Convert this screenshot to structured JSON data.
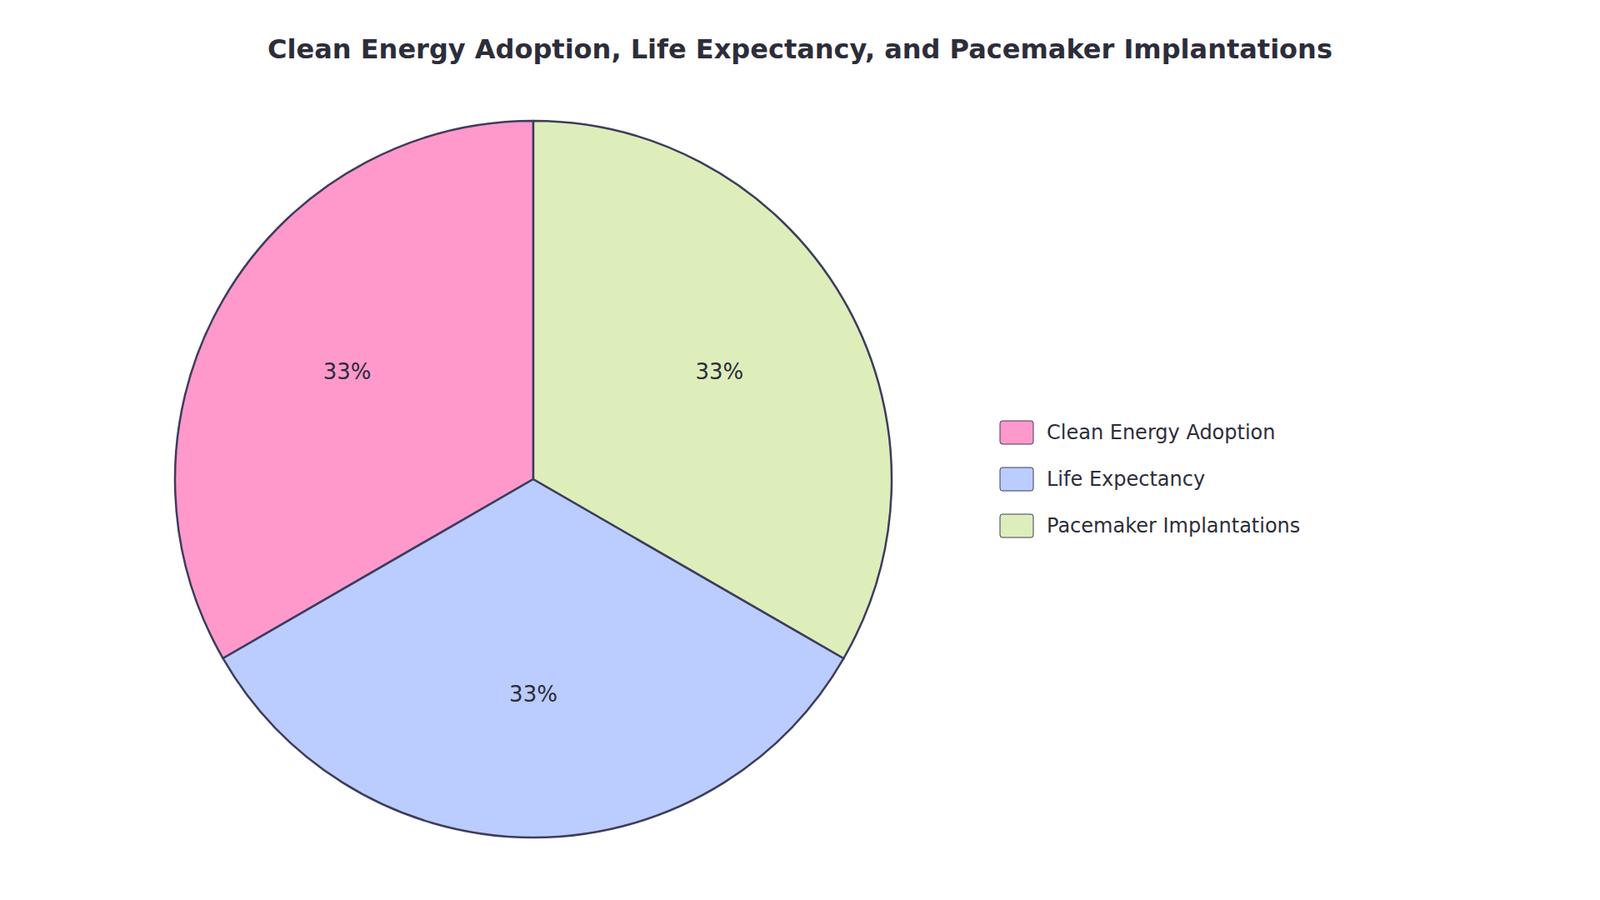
{
  "chart_data": {
    "type": "pie",
    "title": "Clean Energy Adoption, Life Expectancy, and Pacemaker Implantations",
    "categories": [
      "Clean Energy Adoption",
      "Life Expectancy",
      "Pacemaker Implantations"
    ],
    "values": [
      33,
      33,
      33
    ],
    "value_labels": [
      "33%",
      "33%",
      "33%"
    ],
    "colors": [
      "#FF99CC",
      "#BBCCFF",
      "#DDEEBB"
    ],
    "data_labels": true,
    "legend": "right"
  }
}
